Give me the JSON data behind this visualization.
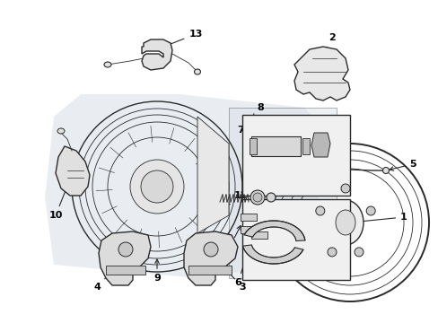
{
  "bg_color": "#ffffff",
  "line_color": "#2a2a2a",
  "label_color": "#000000",
  "shadow_bg": "#d4dce4",
  "fig_width": 4.89,
  "fig_height": 3.6,
  "dpi": 100
}
